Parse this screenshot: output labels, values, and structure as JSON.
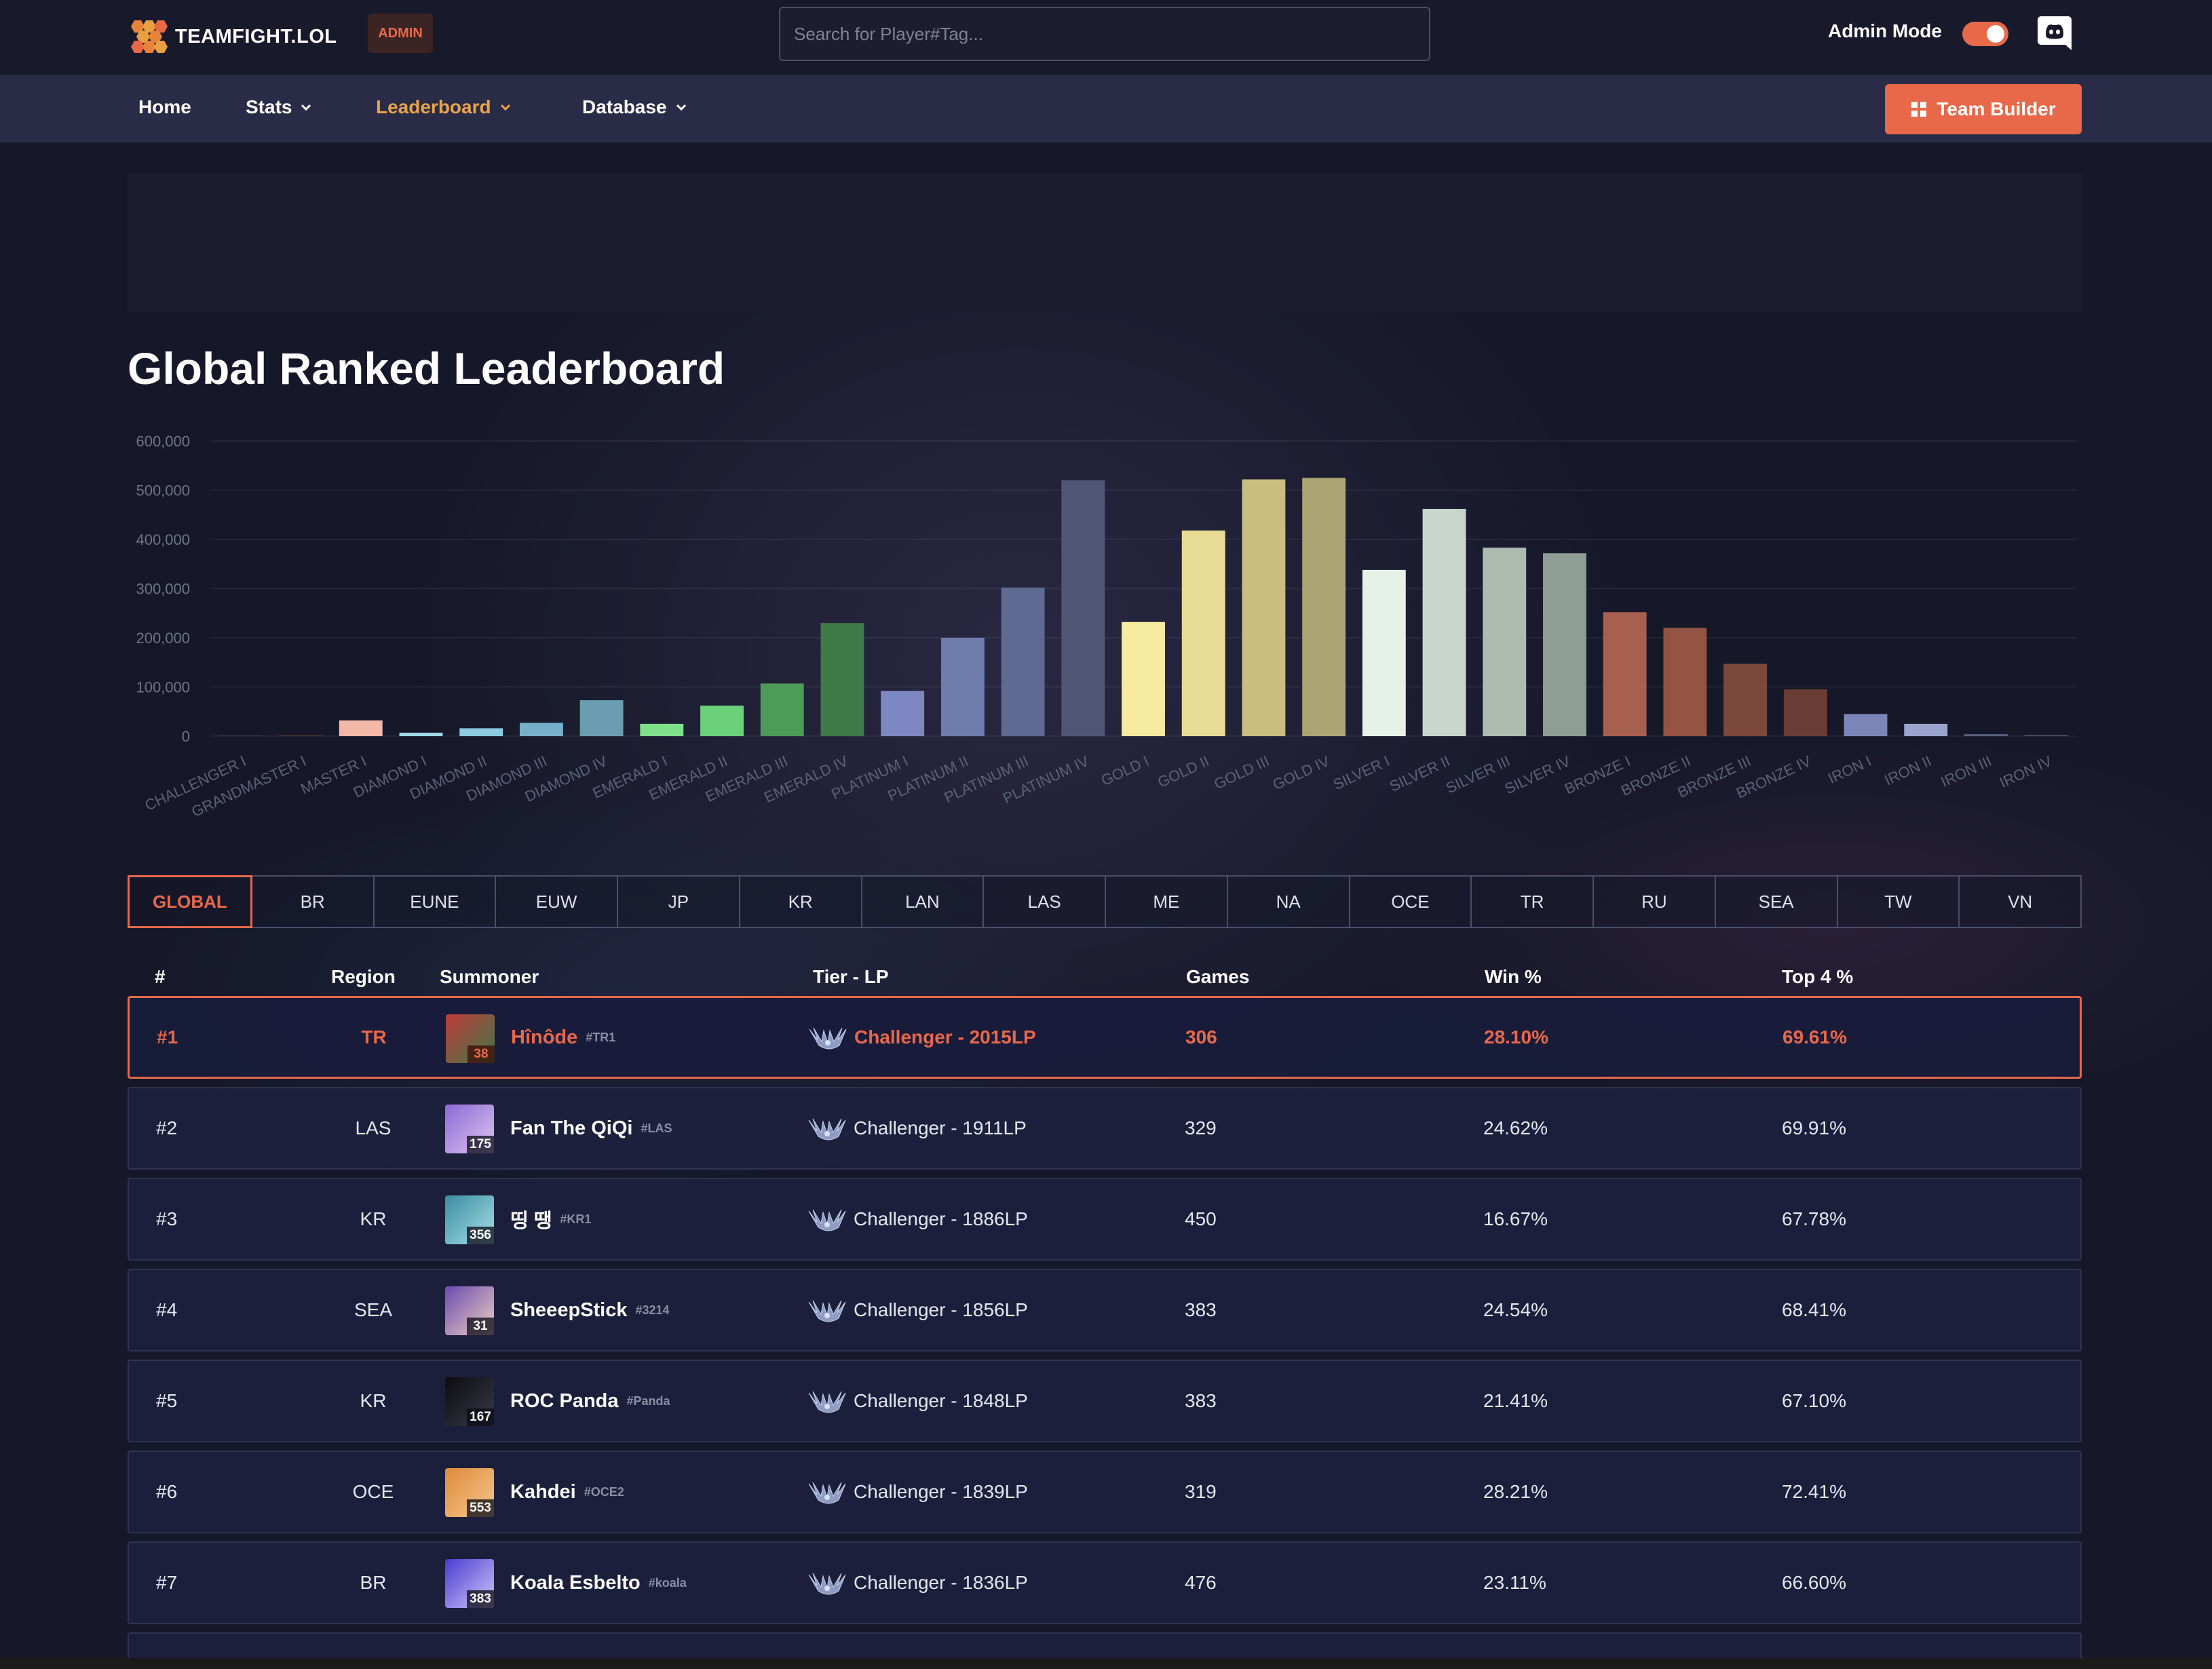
{
  "brand": {
    "name": "TEAMFIGHT.LOL",
    "badge": "ADMIN"
  },
  "search": {
    "placeholder": "Search for Player#Tag..."
  },
  "admin_mode": {
    "label": "Admin Mode",
    "enabled": true
  },
  "nav": {
    "items": [
      {
        "label": "Home",
        "dropdown": false
      },
      {
        "label": "Stats",
        "dropdown": true
      },
      {
        "label": "Leaderboard",
        "dropdown": true,
        "active": true
      },
      {
        "label": "Database",
        "dropdown": true
      }
    ],
    "team_builder": "Team Builder"
  },
  "page_title": "Global Ranked Leaderboard",
  "chart_data": {
    "type": "bar",
    "categories": [
      "CHALLENGER I",
      "GRANDMASTER I",
      "MASTER I",
      "DIAMOND I",
      "DIAMOND II",
      "DIAMOND III",
      "DIAMOND IV",
      "EMERALD I",
      "EMERALD II",
      "EMERALD III",
      "EMERALD IV",
      "PLATINUM I",
      "PLATINUM II",
      "PLATINUM III",
      "PLATINUM IV",
      "GOLD I",
      "GOLD II",
      "GOLD III",
      "GOLD IV",
      "SILVER I",
      "SILVER II",
      "SILVER III",
      "SILVER IV",
      "BRONZE I",
      "BRONZE II",
      "BRONZE III",
      "BRONZE IV",
      "IRON I",
      "IRON II",
      "IRON III",
      "IRON IV"
    ],
    "values": [
      1000,
      2500,
      32000,
      7000,
      16000,
      27000,
      73000,
      25000,
      62000,
      107000,
      230000,
      92000,
      200000,
      302000,
      520000,
      232000,
      418000,
      522000,
      525000,
      338000,
      462000,
      383000,
      372000,
      252000,
      220000,
      147000,
      95000,
      45000,
      25000,
      4000,
      2000
    ],
    "colors": [
      "#2a2c3c",
      "#3a3030",
      "#f2b8a8",
      "#9fd8e6",
      "#8ccbe0",
      "#78afc8",
      "#6a9db0",
      "#7fe08a",
      "#6bd07a",
      "#4e9a58",
      "#3e7a48",
      "#7d88c2",
      "#6e7cae",
      "#5e6a92",
      "#4f5775",
      "#f6eaa0",
      "#e8dc94",
      "#c9bd80",
      "#aba574",
      "#e6f2e8",
      "#c9d6cc",
      "#adbbb0",
      "#8f9e94",
      "#a8604e",
      "#935444",
      "#7d483c",
      "#6a3d34",
      "#7a86b8",
      "#9aa4cc",
      "#5a5f7a",
      "#444860"
    ],
    "ylim": [
      0,
      600000
    ],
    "yticks": [
      "600,000",
      "500,000",
      "400,000",
      "300,000",
      "200,000",
      "100,000",
      "0"
    ],
    "ytick_values": [
      600000,
      500000,
      400000,
      300000,
      200000,
      100000,
      0
    ],
    "grid": true
  },
  "regions": {
    "tabs": [
      "GLOBAL",
      "BR",
      "EUNE",
      "EUW",
      "JP",
      "KR",
      "LAN",
      "LAS",
      "ME",
      "NA",
      "OCE",
      "TR",
      "RU",
      "SEA",
      "TW",
      "VN"
    ],
    "active": "GLOBAL"
  },
  "table": {
    "headers": {
      "rank": "#",
      "region": "Region",
      "summoner": "Summoner",
      "tier": "Tier - LP",
      "games": "Games",
      "win": "Win %",
      "top4": "Top 4 %"
    },
    "rows": [
      {
        "rank": "#1",
        "region": "TR",
        "name": "Hînôde",
        "tag": "#TR1",
        "level": "38",
        "tier": "Challenger - 2015LP",
        "games": "306",
        "win": "28.10%",
        "top4": "69.61%",
        "avatar_colors": [
          "#c23b3b",
          "#3a7a46"
        ]
      },
      {
        "rank": "#2",
        "region": "LAS",
        "name": "Fan The QiQi",
        "tag": "#LAS",
        "level": "175",
        "tier": "Challenger - 1911LP",
        "games": "329",
        "win": "24.62%",
        "top4": "69.91%",
        "avatar_colors": [
          "#8a6ad6",
          "#e0c4f0"
        ]
      },
      {
        "rank": "#3",
        "region": "KR",
        "name": "띵 땡",
        "tag": "#KR1",
        "level": "356",
        "tier": "Challenger - 1886LP",
        "games": "450",
        "win": "16.67%",
        "top4": "67.78%",
        "avatar_colors": [
          "#3a8ca0",
          "#a8e0e8"
        ]
      },
      {
        "rank": "#4",
        "region": "SEA",
        "name": "SheeepStick",
        "tag": "#3214",
        "level": "31",
        "tier": "Challenger - 1856LP",
        "games": "383",
        "win": "24.54%",
        "top4": "68.41%",
        "avatar_colors": [
          "#6a4ab0",
          "#f0d0c0"
        ]
      },
      {
        "rank": "#5",
        "region": "KR",
        "name": "ROC Panda",
        "tag": "#Panda",
        "level": "167",
        "tier": "Challenger - 1848LP",
        "games": "383",
        "win": "21.41%",
        "top4": "67.10%",
        "avatar_colors": [
          "#0c0c10",
          "#3a3a48"
        ]
      },
      {
        "rank": "#6",
        "region": "OCE",
        "name": "Kahdei",
        "tag": "#OCE2",
        "level": "553",
        "tier": "Challenger - 1839LP",
        "games": "319",
        "win": "28.21%",
        "top4": "72.41%",
        "avatar_colors": [
          "#e08a3a",
          "#f2c890"
        ]
      },
      {
        "rank": "#7",
        "region": "BR",
        "name": "Koala Esbelto",
        "tag": "#koala",
        "level": "383",
        "tier": "Challenger - 1836LP",
        "games": "476",
        "win": "23.11%",
        "top4": "66.60%",
        "avatar_colors": [
          "#4a3ad0",
          "#d0c8f8"
        ]
      }
    ]
  },
  "icons": [
    "honeycomb-logo-icon",
    "discord-icon",
    "chevron-down-icon",
    "grid-icon",
    "challenger-emblem-icon"
  ]
}
